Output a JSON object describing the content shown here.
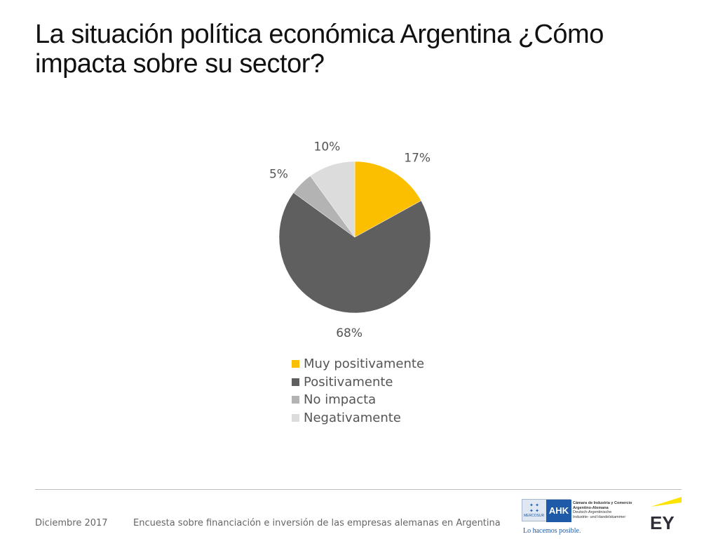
{
  "title": {
    "line1": "La situación política económica Argentina ¿Cómo",
    "line2": "impacta sobre su sector?"
  },
  "chart_data": {
    "type": "pie",
    "title": "",
    "categories": [
      "Muy positivamente",
      "Positivamente",
      "No impacta",
      "Negativamente"
    ],
    "values": [
      17,
      68,
      5,
      10
    ],
    "data_labels": [
      "17%",
      "68%",
      "5%",
      "10%"
    ],
    "colors": [
      "#fcbf00",
      "#5f5f5f",
      "#b3b3b3",
      "#dcdcdc"
    ],
    "legend_position": "bottom",
    "start_angle": "12 o'clock",
    "direction": "clockwise"
  },
  "footer": {
    "date": "Diciembre 2017",
    "text": "Encuesta sobre financiación e inversión de las empresas alemanas en Argentina"
  },
  "logos": {
    "ahk": {
      "mark": "AHK",
      "mercosur": "MERCOSUR",
      "lines": [
        "Cámara de Industria y Comercio",
        "Argentino-Alemana",
        "Deutsch-Argentinische",
        "Industrie- und Handelskammer"
      ],
      "slogan": "Lo hacemos posible."
    },
    "ey": {
      "mark": "EY",
      "accent_color": "#fce300"
    }
  }
}
